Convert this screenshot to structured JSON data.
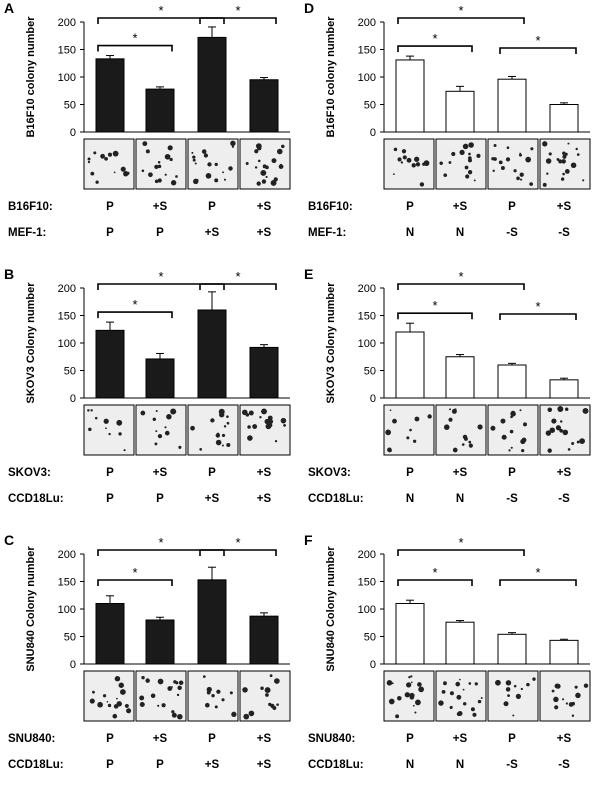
{
  "panels": [
    {
      "letter": "A",
      "ylabel": "B16F10 colony number",
      "fill": "#1a1a1a",
      "row1": {
        "label": "B16F10:",
        "cells": [
          "P",
          "+S",
          "P",
          "+S"
        ]
      },
      "row2": {
        "label": "MEF-1:",
        "cells": [
          "P",
          "P",
          "+S",
          "+S"
        ]
      }
    },
    {
      "letter": "B",
      "ylabel": "SKOV3 Colony number",
      "fill": "#1a1a1a",
      "row1": {
        "label": "SKOV3:",
        "cells": [
          "P",
          "+S",
          "P",
          "+S"
        ]
      },
      "row2": {
        "label": "CCD18Lu:",
        "cells": [
          "P",
          "P",
          "+S",
          "+S"
        ]
      }
    },
    {
      "letter": "C",
      "ylabel": "SNU840 Colony number",
      "fill": "#1a1a1a",
      "row1": {
        "label": "SNU840:",
        "cells": [
          "P",
          "+S",
          "P",
          "+S"
        ]
      },
      "row2": {
        "label": "CCD18Lu:",
        "cells": [
          "P",
          "P",
          "+S",
          "+S"
        ]
      }
    },
    {
      "letter": "D",
      "ylabel": "B16F10 colony number",
      "fill": "#ffffff",
      "row1": {
        "label": "B16F10:",
        "cells": [
          "P",
          "+S",
          "P",
          "+S"
        ]
      },
      "row2": {
        "label": "MEF-1:",
        "cells": [
          "N",
          "N",
          "-S",
          "-S"
        ]
      }
    },
    {
      "letter": "E",
      "ylabel": "SKOV3 Colony number",
      "fill": "#ffffff",
      "row1": {
        "label": "SKOV3:",
        "cells": [
          "P",
          "+S",
          "P",
          "+S"
        ]
      },
      "row2": {
        "label": "CCD18Lu:",
        "cells": [
          "N",
          "N",
          "-S",
          "-S"
        ]
      }
    },
    {
      "letter": "F",
      "ylabel": "SNU840 Colony number",
      "fill": "#ffffff",
      "row1": {
        "label": "SNU840:",
        "cells": [
          "P",
          "+S",
          "P",
          "+S"
        ]
      },
      "row2": {
        "label": "CCD18Lu:",
        "cells": [
          "N",
          "N",
          "-S",
          "-S"
        ]
      }
    }
  ],
  "chart_data": [
    {
      "panel": "A",
      "type": "bar",
      "categories": [
        "1",
        "2",
        "3",
        "4"
      ],
      "values": [
        133,
        78,
        172,
        95
      ],
      "errors": [
        6,
        4,
        19,
        4
      ],
      "ylim": [
        0,
        200
      ],
      "yticks": [
        0,
        50,
        100,
        150,
        200
      ],
      "ylabel": "B16F10 colony number",
      "significance": [
        {
          "from": 1,
          "to": 2,
          "level": 1,
          "label": "*"
        },
        {
          "from": 1,
          "to": 3,
          "level": 2,
          "label": "*"
        },
        {
          "from": 3,
          "to": 4,
          "level": 2,
          "label": "*"
        }
      ]
    },
    {
      "panel": "B",
      "type": "bar",
      "categories": [
        "1",
        "2",
        "3",
        "4"
      ],
      "values": [
        123,
        71,
        160,
        92
      ],
      "errors": [
        15,
        10,
        33,
        5
      ],
      "ylim": [
        0,
        200
      ],
      "yticks": [
        0,
        50,
        100,
        150,
        200
      ],
      "ylabel": "SKOV3 Colony number",
      "significance": [
        {
          "from": 1,
          "to": 2,
          "level": 1,
          "label": "*"
        },
        {
          "from": 1,
          "to": 3,
          "level": 2,
          "label": "*"
        },
        {
          "from": 3,
          "to": 4,
          "level": 2,
          "label": "*"
        }
      ]
    },
    {
      "panel": "C",
      "type": "bar",
      "categories": [
        "1",
        "2",
        "3",
        "4"
      ],
      "values": [
        110,
        80,
        153,
        87
      ],
      "errors": [
        14,
        5,
        23,
        6
      ],
      "ylim": [
        0,
        200
      ],
      "yticks": [
        0,
        50,
        100,
        150,
        200
      ],
      "ylabel": "SNU840 Colony number",
      "significance": [
        {
          "from": 1,
          "to": 2,
          "level": 1,
          "label": "*"
        },
        {
          "from": 1,
          "to": 3,
          "level": 2,
          "label": "*"
        },
        {
          "from": 3,
          "to": 4,
          "level": 2,
          "label": "*"
        }
      ]
    },
    {
      "panel": "D",
      "type": "bar",
      "categories": [
        "1",
        "2",
        "3",
        "4"
      ],
      "values": [
        131,
        74,
        96,
        50
      ],
      "errors": [
        7,
        9,
        5,
        3
      ],
      "ylim": [
        0,
        200
      ],
      "yticks": [
        0,
        50,
        100,
        150,
        200
      ],
      "ylabel": "B16F10 colony number",
      "significance": [
        {
          "from": 1,
          "to": 2,
          "level": 1,
          "label": "*"
        },
        {
          "from": 1,
          "to": 3,
          "level": 2,
          "label": "*"
        },
        {
          "from": 3,
          "to": 4,
          "level": 1,
          "label": "*"
        }
      ]
    },
    {
      "panel": "E",
      "type": "bar",
      "categories": [
        "1",
        "2",
        "3",
        "4"
      ],
      "values": [
        120,
        75,
        60,
        33
      ],
      "errors": [
        16,
        4,
        3,
        3
      ],
      "ylim": [
        0,
        200
      ],
      "yticks": [
        0,
        50,
        100,
        150,
        200
      ],
      "ylabel": "SKOV3 Colony number",
      "significance": [
        {
          "from": 1,
          "to": 2,
          "level": 1,
          "label": "*"
        },
        {
          "from": 1,
          "to": 3,
          "level": 2,
          "label": "*"
        },
        {
          "from": 3,
          "to": 4,
          "level": 1,
          "label": "*"
        }
      ]
    },
    {
      "panel": "F",
      "type": "bar",
      "categories": [
        "1",
        "2",
        "3",
        "4"
      ],
      "values": [
        110,
        76,
        54,
        43
      ],
      "errors": [
        6,
        3,
        3,
        2
      ],
      "ylim": [
        0,
        200
      ],
      "yticks": [
        0,
        50,
        100,
        150,
        200
      ],
      "ylabel": "SNU840 Colony number",
      "significance": [
        {
          "from": 1,
          "to": 2,
          "level": 1,
          "label": "*"
        },
        {
          "from": 1,
          "to": 3,
          "level": 2,
          "label": "*"
        },
        {
          "from": 3,
          "to": 4,
          "level": 1,
          "label": "*"
        }
      ]
    }
  ]
}
